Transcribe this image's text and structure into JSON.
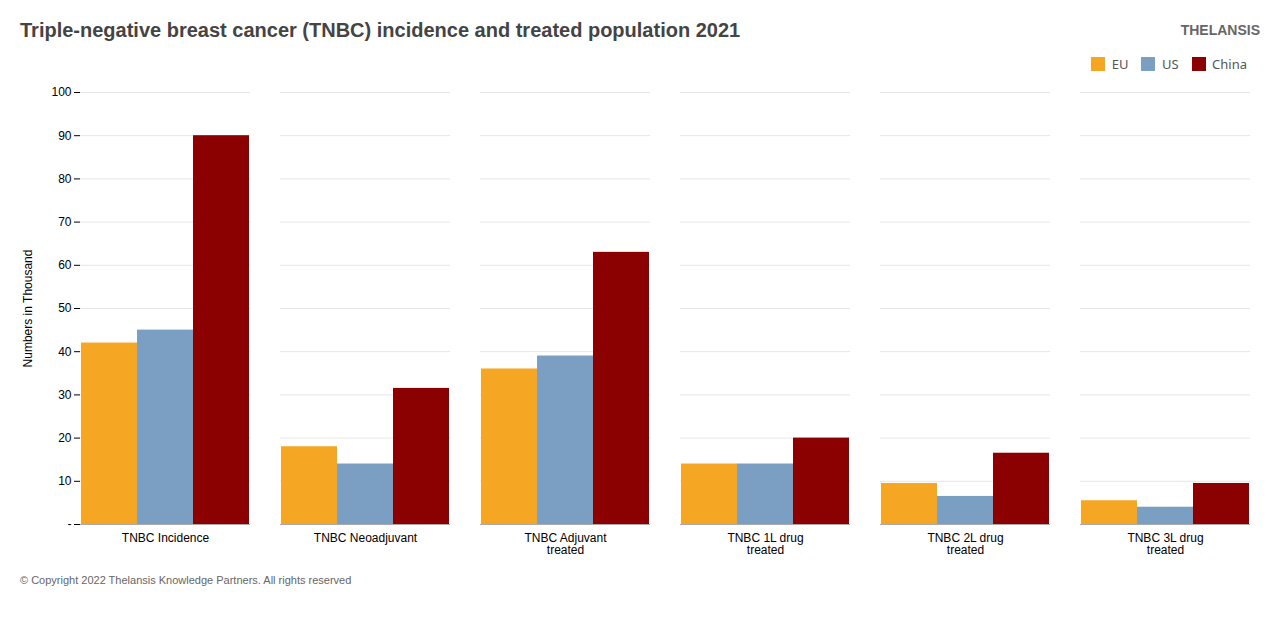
{
  "chart_data": {
    "type": "bar",
    "title": "Triple-negative breast cancer (TNBC) incidence and treated population 2021",
    "categories": [
      "TNBC Incidence",
      "TNBC Neoadjuvant",
      "TNBC Adjuvant\ntreated",
      "TNBC 1L drug\ntreated",
      "TNBC 2L drug\ntreated",
      "TNBC 3L drug\ntreated"
    ],
    "series": [
      {
        "name": "EU",
        "color": "#F5A623",
        "values": [
          42,
          18,
          36,
          14,
          9.5,
          5.5
        ]
      },
      {
        "name": "US",
        "color": "#7B9EC3",
        "values": [
          45,
          14,
          39,
          14,
          6.5,
          4
        ]
      },
      {
        "name": "China",
        "color": "#8B0000",
        "values": [
          90,
          31.5,
          63,
          20,
          16.5,
          9.5
        ]
      }
    ],
    "ylabel": "Numbers in Thousand",
    "ylim": [
      0,
      100
    ],
    "yticks": [
      {
        "value": 0,
        "label": "-"
      },
      10,
      20,
      30,
      40,
      50,
      60,
      70,
      80,
      90,
      100
    ],
    "grid": true,
    "legend": "upper right",
    "annotations": [
      "THELANSIS",
      "© Copyright 2022  Thelansis Knowledge Partners. All rights reserved"
    ]
  }
}
